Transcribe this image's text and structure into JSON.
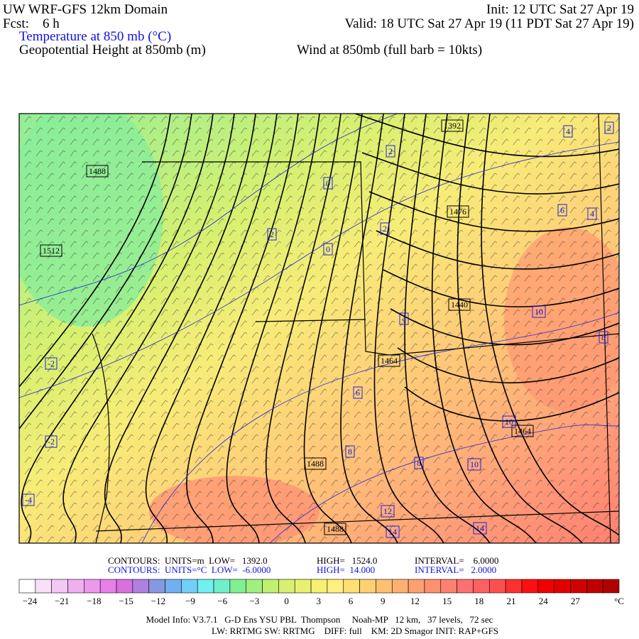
{
  "header": {
    "title": "UW WRF-GFS 12km Domain",
    "init": "Init: 12 UTC Sat 27 Apr 19",
    "fcst": "Fcst:    6 h",
    "valid": "Valid: 18 UTC Sat 27 Apr 19 (11 PDT Sat 27 Apr 19)",
    "field1": "Temperature at 850 mb (°C)",
    "field2": "Geopotential Height at 850mb (m)",
    "field3": "Wind at 850mb (full barb = 10kts)"
  },
  "map": {
    "height_labels": [
      "1392",
      "1488",
      "1476",
      "1512",
      "1440",
      "1464",
      "1464",
      "1488",
      "1488"
    ],
    "temp_labels": [
      "2",
      "0",
      "4",
      "2",
      "2",
      "0",
      "2",
      "6",
      "4",
      "4",
      "10",
      "8",
      "-2",
      "6",
      "10",
      "8",
      "8",
      "10",
      "-2",
      "12",
      "14",
      "14",
      "-4"
    ]
  },
  "contours": {
    "height": [
      "CONTOURS:  UNITS=m  LOW=   1392.0",
      "HIGH=   1524.0",
      "INTERVAL=    6.0000"
    ],
    "temperature": [
      "CONTOURS:  UNITS=°C  LOW=  -6.0000",
      "HIGH=  14.000",
      "INTERVAL=   2.0000"
    ]
  },
  "colorbar": {
    "labels": [
      "−24",
      "−21",
      "−18",
      "−15",
      "−12",
      "−9",
      "−6",
      "−3",
      "0",
      "3",
      "6",
      "9",
      "12",
      "15",
      "18",
      "21",
      "24",
      "27"
    ],
    "unit": "°C",
    "colors": [
      "#ffffff",
      "#f8e0f8",
      "#f4c8f4",
      "#f0b0f0",
      "#ec98ec",
      "#e880e8",
      "#d870e0",
      "#b080e0",
      "#8898e0",
      "#70b0f0",
      "#70d0f8",
      "#70f0f0",
      "#70f0c8",
      "#80f090",
      "#a0f080",
      "#c0f070",
      "#d8f070",
      "#e8f070",
      "#f8f070",
      "#fff080",
      "#ffe070",
      "#ffd070",
      "#ffc070",
      "#ffb070",
      "#ffa070",
      "#ff9070",
      "#ff8070",
      "#ff7070",
      "#ff6060",
      "#ff5050",
      "#ff3030",
      "#ff1010",
      "#f00000",
      "#e00000",
      "#d00000",
      "#c00000",
      "#b00000"
    ]
  },
  "footer": {
    "line1": "Model Info: V3.7.1   G-D Ens YSU PBL  Thompson     Noah-MP   12 km,   37 levels,   72 sec",
    "line2": "LW: RRTMG SW: RRTMG    DIFF: full    KM: 2D Smagor INIT: RAP+GFS"
  }
}
